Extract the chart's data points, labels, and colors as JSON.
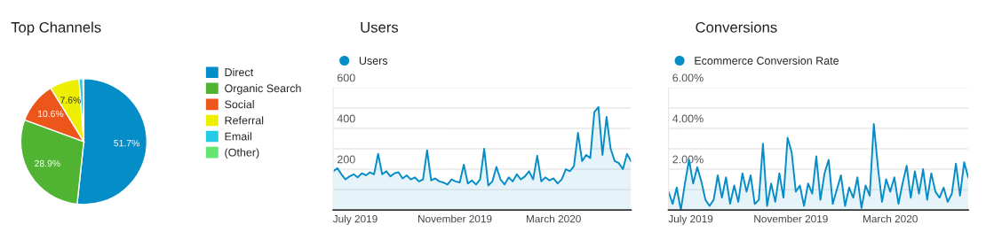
{
  "chart_data": [
    {
      "type": "pie",
      "title": "Top Channels",
      "categories": [
        "Direct",
        "Organic Search",
        "Social",
        "Referral",
        "Email",
        "(Other)"
      ],
      "values": [
        51.7,
        28.9,
        10.6,
        7.6,
        1.0,
        0.2
      ],
      "colors": [
        "#058dc7",
        "#50b432",
        "#ed561b",
        "#edef00",
        "#24cbe5",
        "#64e572"
      ],
      "value_labels": [
        "51.7%",
        "28.9%",
        "10.6%",
        "7.6%",
        null,
        null
      ],
      "legend": "right"
    },
    {
      "type": "area",
      "title": "Users",
      "legend": "top left",
      "grid": "y",
      "marker": "none",
      "x": [
        "2019-06-19",
        "2019-06-24",
        "2019-06-29",
        "2019-07-04",
        "2019-07-09",
        "2019-07-14",
        "2019-07-19",
        "2019-07-24",
        "2019-07-29",
        "2019-08-03",
        "2019-08-08",
        "2019-08-13",
        "2019-08-18",
        "2019-08-23",
        "2019-08-28",
        "2019-09-02",
        "2019-09-07",
        "2019-09-12",
        "2019-09-17",
        "2019-09-22",
        "2019-09-27",
        "2019-10-02",
        "2019-10-07",
        "2019-10-12",
        "2019-10-17",
        "2019-10-22",
        "2019-10-27",
        "2019-11-01",
        "2019-11-06",
        "2019-11-11",
        "2019-11-16",
        "2019-11-21",
        "2019-11-26",
        "2019-12-01",
        "2019-12-06",
        "2019-12-11",
        "2019-12-16",
        "2019-12-21",
        "2019-12-26",
        "2019-12-31",
        "2020-01-05",
        "2020-01-10",
        "2020-01-15",
        "2020-01-20",
        "2020-01-25",
        "2020-01-30",
        "2020-02-04",
        "2020-02-09",
        "2020-02-14",
        "2020-02-19",
        "2020-02-24",
        "2020-02-29",
        "2020-03-05",
        "2020-03-10",
        "2020-03-15",
        "2020-03-20",
        "2020-03-25",
        "2020-03-30",
        "2020-04-04",
        "2020-04-09",
        "2020-04-14",
        "2020-04-19",
        "2020-04-24",
        "2020-04-29",
        "2020-05-04",
        "2020-05-09",
        "2020-05-14",
        "2020-05-19",
        "2020-05-24",
        "2020-05-29",
        "2020-06-03",
        "2020-06-08",
        "2020-06-13",
        "2020-06-18"
      ],
      "series": [
        {
          "name": "Users",
          "color": "#058dc7",
          "values": [
            190,
            205,
            175,
            150,
            165,
            175,
            160,
            180,
            170,
            185,
            175,
            275,
            175,
            190,
            165,
            180,
            185,
            155,
            170,
            150,
            160,
            140,
            150,
            293,
            145,
            155,
            140,
            135,
            125,
            150,
            140,
            135,
            222,
            130,
            145,
            125,
            150,
            300,
            120,
            140,
            211,
            150,
            125,
            160,
            140,
            175,
            150,
            165,
            190,
            150,
            266,
            140,
            160,
            145,
            155,
            130,
            150,
            200,
            190,
            215,
            378,
            240,
            270,
            255,
            480,
            505,
            270,
            457,
            300,
            240,
            230,
            200,
            275,
            239
          ]
        }
      ],
      "xlim": [
        "2019-06-19",
        "2020-06-18"
      ],
      "xticks": [
        {
          "value": "2019-07-16",
          "label": "July 2019"
        },
        {
          "value": "2019-11-15",
          "label": "November 2019"
        },
        {
          "value": "2020-03-15",
          "label": "March 2020"
        }
      ],
      "ylim": [
        0,
        600
      ],
      "yticks": [
        {
          "value": 100,
          "label": null
        },
        200,
        {
          "value": 300,
          "label": null
        },
        400,
        {
          "value": 500,
          "label": null
        },
        600
      ]
    },
    {
      "type": "area",
      "title": "Conversions",
      "legend": "top left",
      "grid": "y",
      "marker": "none",
      "x": [
        "2019-06-19",
        "2019-06-24",
        "2019-06-29",
        "2019-07-04",
        "2019-07-09",
        "2019-07-14",
        "2019-07-19",
        "2019-07-24",
        "2019-07-29",
        "2019-08-03",
        "2019-08-08",
        "2019-08-13",
        "2019-08-18",
        "2019-08-23",
        "2019-08-28",
        "2019-09-02",
        "2019-09-07",
        "2019-09-12",
        "2019-09-17",
        "2019-09-22",
        "2019-09-27",
        "2019-10-02",
        "2019-10-07",
        "2019-10-12",
        "2019-10-17",
        "2019-10-22",
        "2019-10-27",
        "2019-11-01",
        "2019-11-06",
        "2019-11-11",
        "2019-11-16",
        "2019-11-21",
        "2019-11-26",
        "2019-12-01",
        "2019-12-06",
        "2019-12-11",
        "2019-12-16",
        "2019-12-21",
        "2019-12-26",
        "2019-12-31",
        "2020-01-05",
        "2020-01-10",
        "2020-01-15",
        "2020-01-20",
        "2020-01-25",
        "2020-01-30",
        "2020-02-04",
        "2020-02-09",
        "2020-02-14",
        "2020-02-19",
        "2020-02-24",
        "2020-02-29",
        "2020-03-05",
        "2020-03-10",
        "2020-03-15",
        "2020-03-20",
        "2020-03-25",
        "2020-03-30",
        "2020-04-04",
        "2020-04-09",
        "2020-04-14",
        "2020-04-19",
        "2020-04-24",
        "2020-04-29",
        "2020-05-04",
        "2020-05-09",
        "2020-05-14",
        "2020-05-19",
        "2020-05-24",
        "2020-05-29",
        "2020-06-03",
        "2020-06-08",
        "2020-06-13",
        "2020-06-18"
      ],
      "series": [
        {
          "name": "Ecommerce Conversion Rate",
          "color": "#058dc7",
          "values": [
            0.9,
            0.3,
            1.1,
            0.0,
            1.3,
            2.46,
            1.3,
            2.1,
            1.4,
            0.5,
            0.2,
            0.5,
            1.7,
            0.6,
            1.6,
            0.3,
            1.2,
            0.4,
            1.8,
            0.9,
            1.7,
            0.3,
            0.5,
            3.25,
            0.2,
            1.3,
            0.4,
            1.8,
            0.6,
            3.54,
            2.82,
            0.9,
            1.2,
            0.2,
            1.3,
            0.8,
            2.63,
            0.5,
            1.8,
            2.46,
            0.3,
            1.0,
            1.7,
            0.2,
            1.1,
            0.6,
            1.6,
            0.1,
            1.2,
            0.7,
            4.22,
            2.1,
            0.4,
            1.5,
            0.9,
            1.6,
            0.3,
            1.3,
            2.17,
            0.6,
            1.9,
            0.8,
            2.0,
            0.5,
            1.8,
            0.9,
            0.6,
            1.1,
            0.4,
            0.8,
            2.27,
            0.7,
            2.34,
            1.6
          ]
        }
      ],
      "xlim": [
        "2019-06-19",
        "2020-06-18"
      ],
      "xticks": [
        {
          "value": "2019-07-16",
          "label": "July 2019"
        },
        {
          "value": "2019-11-15",
          "label": "November 2019"
        },
        {
          "value": "2020-03-15",
          "label": "March 2020"
        }
      ],
      "ylim": [
        0,
        6
      ],
      "yticks": [
        {
          "value": 1,
          "label": null
        },
        {
          "value": 2,
          "label": "2.00%"
        },
        {
          "value": 3,
          "label": null
        },
        {
          "value": 4,
          "label": "4.00%"
        },
        {
          "value": 5,
          "label": null
        },
        {
          "value": 6,
          "label": "6.00%"
        }
      ]
    }
  ]
}
